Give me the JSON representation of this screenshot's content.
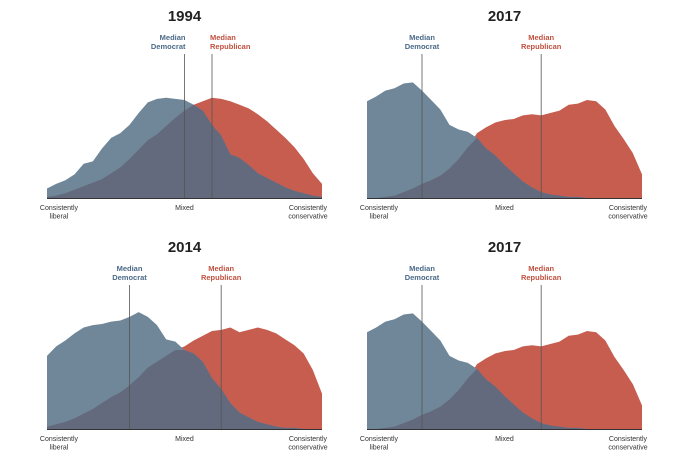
{
  "colors": {
    "democrat": "#6F8799",
    "republican": "#C65D4F",
    "overlap": "#646A7D",
    "democrat_text": "#4B6A88",
    "republican_text": "#C0513F",
    "median_line": "#555555",
    "axis": "#333333"
  },
  "shared_labels": {
    "median_democrat": [
      "Median",
      "Democrat"
    ],
    "median_republican": [
      "Median",
      "Republican"
    ],
    "x_ticks": {
      "left": [
        "Consistently",
        "liberal"
      ],
      "middle": [
        "Mixed"
      ],
      "right": [
        "Consistently",
        "conservative"
      ]
    }
  },
  "chart_data": [
    {
      "type": "area",
      "title": "1994",
      "x": [
        0,
        1,
        2,
        3,
        4,
        5,
        6,
        7,
        8,
        9,
        10,
        11,
        12,
        13,
        14,
        15,
        16,
        17,
        18,
        19,
        20,
        21,
        22,
        23,
        24,
        25,
        26,
        27,
        28,
        29,
        30
      ],
      "x_ticks": [
        "Consistently liberal",
        "Mixed",
        "Consistently conservative"
      ],
      "ylim": [
        0,
        100
      ],
      "series": [
        {
          "name": "Democrat",
          "values": [
            8,
            12,
            15,
            20,
            29,
            31,
            42,
            51,
            55,
            62,
            72,
            81,
            84,
            85,
            84,
            83,
            79,
            74,
            62,
            53,
            37,
            34,
            28,
            21,
            17,
            13,
            9,
            6,
            4,
            2,
            1
          ]
        },
        {
          "name": "Republican",
          "values": [
            1,
            2,
            4,
            7,
            10,
            13,
            16,
            21,
            26,
            33,
            41,
            49,
            54,
            61,
            68,
            74,
            79,
            82,
            85,
            84,
            82,
            79,
            76,
            71,
            65,
            58,
            51,
            43,
            33,
            21,
            12
          ]
        }
      ],
      "median_democrat": 15,
      "median_republican": 18
    },
    {
      "type": "area",
      "title": "2017",
      "x": [
        0,
        1,
        2,
        3,
        4,
        5,
        6,
        7,
        8,
        9,
        10,
        11,
        12,
        13,
        14,
        15,
        16,
        17,
        18,
        19,
        20,
        21,
        22,
        23,
        24,
        25,
        26,
        27,
        28,
        29,
        30
      ],
      "x_ticks": [
        "Consistently liberal",
        "Mixed",
        "Consistently conservative"
      ],
      "ylim": [
        0,
        100
      ],
      "series": [
        {
          "name": "Democrat",
          "values": [
            82,
            86,
            91,
            93,
            97,
            98,
            91,
            83,
            75,
            62,
            58,
            56,
            51,
            42,
            36,
            28,
            21,
            14,
            9,
            5,
            3,
            2,
            1,
            1,
            0,
            0,
            0,
            0,
            0,
            0,
            0
          ]
        },
        {
          "name": "Republican",
          "values": [
            0,
            0,
            1,
            2,
            5,
            8,
            12,
            15,
            19,
            25,
            33,
            43,
            55,
            60,
            64,
            66,
            67,
            70,
            71,
            70,
            72,
            74,
            79,
            80,
            83,
            82,
            75,
            61,
            50,
            38,
            20
          ]
        }
      ],
      "median_democrat": 6,
      "median_republican": 19
    },
    {
      "type": "area",
      "title": "2014",
      "x": [
        0,
        1,
        2,
        3,
        4,
        5,
        6,
        7,
        8,
        9,
        10,
        11,
        12,
        13,
        14,
        15,
        16,
        17,
        18,
        19,
        20,
        21,
        22,
        23,
        24,
        25,
        26,
        27,
        28,
        29,
        30
      ],
      "x_ticks": [
        "Consistently liberal",
        "Mixed",
        "Consistently conservative"
      ],
      "ylim": [
        0,
        100
      ],
      "series": [
        {
          "name": "Democrat",
          "values": [
            62,
            70,
            75,
            81,
            86,
            88,
            89,
            91,
            92,
            95,
            99,
            95,
            88,
            76,
            74,
            67,
            64,
            57,
            43,
            34,
            22,
            14,
            10,
            6,
            4,
            2,
            1,
            1,
            0,
            0,
            0
          ]
        },
        {
          "name": "Republican",
          "values": [
            2,
            4,
            6,
            9,
            13,
            17,
            22,
            27,
            31,
            37,
            44,
            52,
            57,
            62,
            67,
            70,
            75,
            79,
            83,
            84,
            86,
            82,
            84,
            86,
            84,
            81,
            76,
            71,
            64,
            50,
            30
          ]
        }
      ],
      "median_democrat": 9,
      "median_republican": 19
    },
    {
      "type": "area",
      "title": "2017",
      "x": [
        0,
        1,
        2,
        3,
        4,
        5,
        6,
        7,
        8,
        9,
        10,
        11,
        12,
        13,
        14,
        15,
        16,
        17,
        18,
        19,
        20,
        21,
        22,
        23,
        24,
        25,
        26,
        27,
        28,
        29,
        30
      ],
      "x_ticks": [
        "Consistently liberal",
        "Mixed",
        "Consistently conservative"
      ],
      "ylim": [
        0,
        100
      ],
      "series": [
        {
          "name": "Democrat",
          "values": [
            82,
            86,
            91,
            93,
            97,
            98,
            91,
            83,
            75,
            62,
            58,
            56,
            51,
            42,
            36,
            28,
            21,
            14,
            9,
            5,
            3,
            2,
            1,
            1,
            0,
            0,
            0,
            0,
            0,
            0,
            0
          ]
        },
        {
          "name": "Republican",
          "values": [
            0,
            0,
            1,
            2,
            5,
            8,
            12,
            15,
            19,
            25,
            33,
            43,
            55,
            60,
            64,
            66,
            67,
            70,
            71,
            70,
            72,
            74,
            79,
            80,
            83,
            82,
            75,
            61,
            50,
            38,
            20
          ]
        }
      ],
      "median_democrat": 6,
      "median_republican": 19
    }
  ]
}
